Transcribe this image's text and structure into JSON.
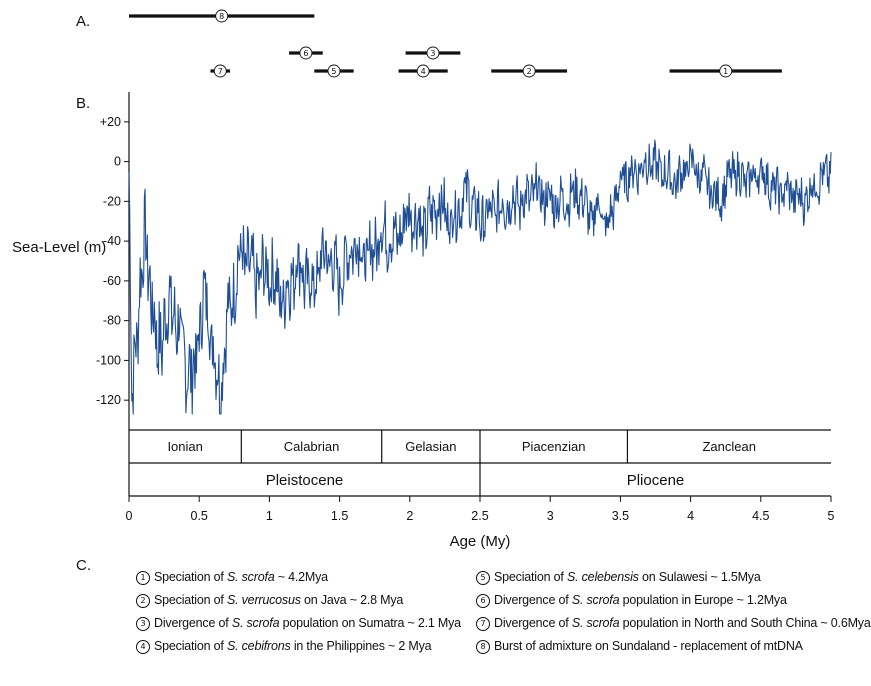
{
  "panels": {
    "a": "A.",
    "b": "B.",
    "c": "C."
  },
  "chart_data": {
    "type": "line",
    "ylabel": "Sea-Level (m)",
    "xlabel": "Age (My)",
    "xlim": [
      0,
      5
    ],
    "ylim": [
      -135,
      35
    ],
    "xticks": [
      {
        "v": 0,
        "label": "0"
      },
      {
        "v": 0.5,
        "label": "0.5"
      },
      {
        "v": 1,
        "label": "1"
      },
      {
        "v": 1.5,
        "label": "1.5"
      },
      {
        "v": 2,
        "label": "2"
      },
      {
        "v": 2.5,
        "label": "2.5"
      },
      {
        "v": 3,
        "label": "3"
      },
      {
        "v": 3.5,
        "label": "3.5"
      },
      {
        "v": 4,
        "label": "4"
      },
      {
        "v": 4.5,
        "label": "4.5"
      },
      {
        "v": 5,
        "label": "5"
      }
    ],
    "yticks": [
      {
        "v": 20,
        "label": "+20"
      },
      {
        "v": 0,
        "label": "0"
      },
      {
        "v": -20,
        "label": "-20"
      },
      {
        "v": -40,
        "label": "-40"
      },
      {
        "v": -60,
        "label": "-60"
      },
      {
        "v": -80,
        "label": "-80"
      },
      {
        "v": -100,
        "label": "-100"
      },
      {
        "v": -120,
        "label": "-120"
      }
    ],
    "line_color": "#1f4e96",
    "anchors": [
      [
        0,
        -5
      ],
      [
        0.02,
        -120
      ],
      [
        0.08,
        -60
      ],
      [
        0.12,
        -40
      ],
      [
        0.2,
        -95
      ],
      [
        0.3,
        -70
      ],
      [
        0.4,
        -100
      ],
      [
        0.45,
        -110
      ],
      [
        0.5,
        -85
      ],
      [
        0.55,
        -65
      ],
      [
        0.6,
        -95
      ],
      [
        0.65,
        -115
      ],
      [
        0.7,
        -80
      ],
      [
        0.8,
        -45
      ],
      [
        0.9,
        -60
      ],
      [
        1.0,
        -55
      ],
      [
        1.1,
        -70
      ],
      [
        1.2,
        -50
      ],
      [
        1.3,
        -65
      ],
      [
        1.4,
        -45
      ],
      [
        1.5,
        -60
      ],
      [
        1.6,
        -40
      ],
      [
        1.7,
        -50
      ],
      [
        1.8,
        -35
      ],
      [
        1.9,
        -40
      ],
      [
        2.0,
        -25
      ],
      [
        2.1,
        -35
      ],
      [
        2.2,
        -20
      ],
      [
        2.3,
        -30
      ],
      [
        2.4,
        -15
      ],
      [
        2.5,
        -30
      ],
      [
        2.6,
        -25
      ],
      [
        2.7,
        -20
      ],
      [
        2.8,
        -20
      ],
      [
        2.9,
        -15
      ],
      [
        3.0,
        -20
      ],
      [
        3.1,
        -20
      ],
      [
        3.2,
        -15
      ],
      [
        3.3,
        -30
      ],
      [
        3.35,
        -20
      ],
      [
        3.4,
        -35
      ],
      [
        3.5,
        -10
      ],
      [
        3.6,
        -5
      ],
      [
        3.7,
        0
      ],
      [
        3.8,
        -5
      ],
      [
        3.9,
        -10
      ],
      [
        4.0,
        0
      ],
      [
        4.1,
        -10
      ],
      [
        4.2,
        -20
      ],
      [
        4.3,
        -5
      ],
      [
        4.4,
        -10
      ],
      [
        4.5,
        -5
      ],
      [
        4.6,
        -15
      ],
      [
        4.7,
        -15
      ],
      [
        4.8,
        -20
      ],
      [
        4.9,
        -10
      ],
      [
        5.0,
        -5
      ]
    ],
    "noise_amplitude": [
      [
        0,
        40
      ],
      [
        0.8,
        32
      ],
      [
        1.5,
        28
      ],
      [
        2.5,
        24
      ],
      [
        3.5,
        18
      ],
      [
        5.0,
        18
      ]
    ],
    "stages": [
      {
        "name": "Ionian",
        "from": 0,
        "to": 0.8
      },
      {
        "name": "Calabrian",
        "from": 0.8,
        "to": 1.8
      },
      {
        "name": "Gelasian",
        "from": 1.8,
        "to": 2.5
      },
      {
        "name": "Piacenzian",
        "from": 2.5,
        "to": 3.55
      },
      {
        "name": "Zanclean",
        "from": 3.55,
        "to": 5.0
      }
    ],
    "epochs": [
      {
        "name": "Pleistocene",
        "from": 0,
        "to": 2.5
      },
      {
        "name": "Pliocene",
        "from": 2.5,
        "to": 5.0
      }
    ]
  },
  "events": [
    {
      "id": "8",
      "symbol": "⑧",
      "from": 0,
      "to": 1.32,
      "row": 0
    },
    {
      "id": "6",
      "symbol": "⑥",
      "from": 1.14,
      "to": 1.38,
      "row": 1
    },
    {
      "id": "3",
      "symbol": "③",
      "from": 1.97,
      "to": 2.36,
      "row": 1
    },
    {
      "id": "7",
      "symbol": "⑦",
      "from": 0.58,
      "to": 0.72,
      "row": 2
    },
    {
      "id": "5",
      "symbol": "⑤",
      "from": 1.32,
      "to": 1.6,
      "row": 2
    },
    {
      "id": "4",
      "symbol": "④",
      "from": 1.92,
      "to": 2.27,
      "row": 2
    },
    {
      "id": "2",
      "symbol": "②",
      "from": 2.58,
      "to": 3.12,
      "row": 2
    },
    {
      "id": "1",
      "symbol": "①",
      "from": 3.85,
      "to": 4.65,
      "row": 2
    }
  ],
  "legend": [
    {
      "num": "①",
      "pre": "Speciation of ",
      "em": "S. scrofa",
      "post": " ~ 4.2Mya"
    },
    {
      "num": "②",
      "pre": "Speciation of ",
      "em": "S. verrucosus",
      "post": " on Java ~ 2.8 Mya"
    },
    {
      "num": "③",
      "pre": "Divergence of ",
      "em": "S. scrofa",
      "post": " population on Sumatra ~ 2.1 Mya"
    },
    {
      "num": "④",
      "pre": "Speciation of ",
      "em": "S. cebifrons",
      "post": " in the Philippines ~ 2 Mya"
    },
    {
      "num": "⑤",
      "pre": "Speciation of ",
      "em": "S. celebensis",
      "post": " on Sulawesi ~ 1.5Mya"
    },
    {
      "num": "⑥",
      "pre": "Divergence of ",
      "em": "S. scrofa",
      "post": " population in Europe ~ 1.2Mya"
    },
    {
      "num": "⑦",
      "pre": "Divergence of ",
      "em": "S. scrofa",
      "post": " population in North and South China ~ 0.6Mya"
    },
    {
      "num": "⑧",
      "pre": "Burst of admixture on Sundaland - replacement of mtDNA",
      "em": "",
      "post": ""
    }
  ]
}
